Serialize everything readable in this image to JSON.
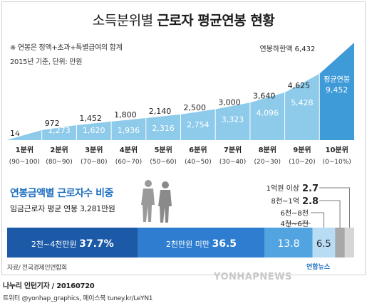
{
  "title": {
    "part1": "소득분위별",
    "part2": "근로자 평균연봉 현황"
  },
  "notes": {
    "line1": "※ 연봉은 정액+초과+특별급여의 합계",
    "line2": "2015년 기준, 단위: 만원"
  },
  "chart_data": [
    {
      "type": "area",
      "series": [
        {
          "name": "연봉하한액",
          "values": [
            14,
            972,
            1452,
            1800,
            2140,
            2500,
            3000,
            3640,
            4625,
            6432
          ]
        },
        {
          "name": "평균연봉",
          "values": [
            601,
            1273,
            1620,
            1936,
            2316,
            2754,
            3323,
            4096,
            5428,
            9452
          ]
        }
      ],
      "categories": [
        {
          "label": "1분위",
          "range": "(90~100)"
        },
        {
          "label": "2분위",
          "range": "(80~90)"
        },
        {
          "label": "3분위",
          "range": "(70~80)"
        },
        {
          "label": "4분위",
          "range": "(60~70)"
        },
        {
          "label": "5분위",
          "range": "(50~60)"
        },
        {
          "label": "6분위",
          "range": "(40~50)"
        },
        {
          "label": "7분위",
          "range": "(30~40)"
        },
        {
          "label": "8분위",
          "range": "(20~30)"
        },
        {
          "label": "9분위",
          "range": "(10~20)"
        },
        {
          "label": "10분위",
          "range": "(0~10%)"
        }
      ],
      "annotations": {
        "lower_bound": "연봉하한액",
        "lower_bound_value": "6,432",
        "average": "평균연봉",
        "average_value": "9,452"
      },
      "labels_lower": [
        "14",
        "972",
        "1,452",
        "1,800",
        "2,140",
        "2,500",
        "3,000",
        "3,640",
        "4,625",
        "6,432"
      ],
      "labels_avg": [
        "601",
        "1,273",
        "1,620",
        "1,936",
        "2,316",
        "2,754",
        "3,323",
        "4,096",
        "5,428",
        "9,452"
      ],
      "colors": {
        "area_light": "#8ecbea",
        "area_dark": "#3f9ad8",
        "top_area": "#a5d4ef"
      }
    },
    {
      "type": "bar",
      "title": "연봉금액별 근로자수 비중",
      "subtitle": "임금근로자 평균 연봉 3,281만원",
      "segments": [
        {
          "label": "2천~4천만원",
          "value": 37.7,
          "text": "37.7%",
          "color": "#1c5aa8"
        },
        {
          "label": "2천만원 미만",
          "value": 36.5,
          "text": "36.5",
          "color": "#2e7dd0"
        },
        {
          "label": "4천~6천",
          "value": 13.8,
          "text": "13.8",
          "color": "#52a4e0"
        },
        {
          "label": "6천~8천",
          "value": 6.5,
          "text": "6.5",
          "color": "#b8dcf3"
        },
        {
          "label": "8천~1억",
          "value": 2.8,
          "text": "2.8",
          "color": "#a8a8a8"
        },
        {
          "label": "1억원 이상",
          "value": 2.7,
          "text": "2.7",
          "color": "#d6d6d6"
        }
      ]
    }
  ],
  "source": "자료/ 전국경제인연합회",
  "logo": "연합뉴스",
  "watermark": "YONHAPNEWS",
  "credit": {
    "line1": "나누리 인턴기자 / 20160720",
    "line2": "트위터 @yonhap_graphics, 페이스북 tuney.kr/LeYN1"
  }
}
